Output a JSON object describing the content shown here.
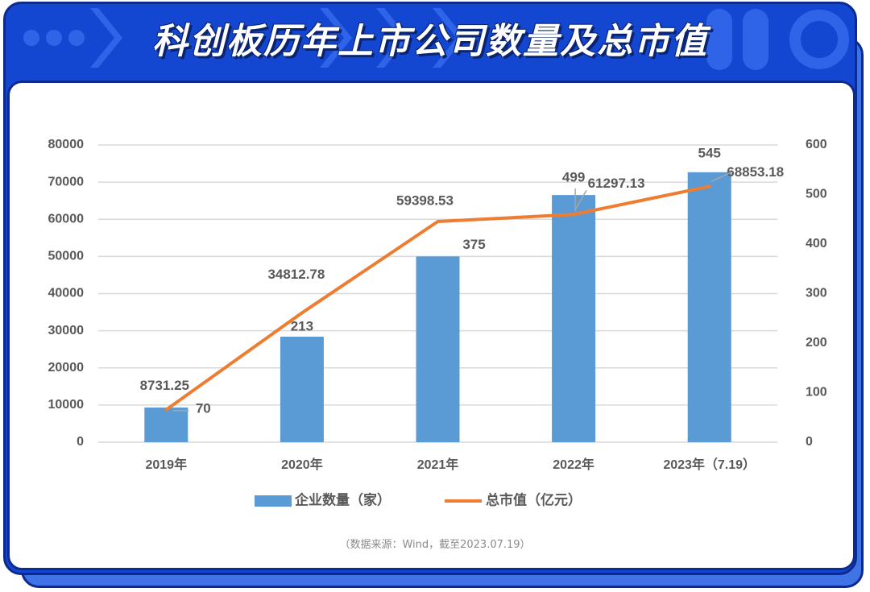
{
  "title": "科创板历年上市公司数量及总市值",
  "source_note": "（数据来源：Wind，截至2023.07.19）",
  "colors": {
    "frame": "#1447d1",
    "bar": "#5b9bd5",
    "line": "#ed7d31",
    "text": "#595959",
    "grid": "#d9d9d9"
  },
  "chart_data": {
    "type": "bar+line",
    "categories": [
      "2019年",
      "2020年",
      "2021年",
      "2022年",
      "2023年（7.19）"
    ],
    "series": [
      {
        "name": "企业数量（家）",
        "type": "bar",
        "axis": "right",
        "values": [
          70,
          213,
          375,
          499,
          545
        ],
        "labels": [
          "70",
          "213",
          "375",
          "499",
          "545"
        ]
      },
      {
        "name": "总市值（亿元）",
        "type": "line",
        "axis": "left",
        "values": [
          8731.25,
          34812.78,
          59398.53,
          61297.13,
          68853.18
        ],
        "labels": [
          "8731.25",
          "34812.78",
          "59398.53",
          "61297.13",
          "68853.18"
        ]
      }
    ],
    "left_axis": {
      "ylim": [
        0,
        80000
      ],
      "ticks": [
        "0",
        "10000",
        "20000",
        "30000",
        "40000",
        "50000",
        "60000",
        "70000",
        "80000"
      ]
    },
    "right_axis": {
      "ylim": [
        0,
        600
      ],
      "ticks": [
        "0",
        "100",
        "200",
        "300",
        "400",
        "500",
        "600"
      ]
    },
    "grid": true,
    "legend": "bottom"
  }
}
